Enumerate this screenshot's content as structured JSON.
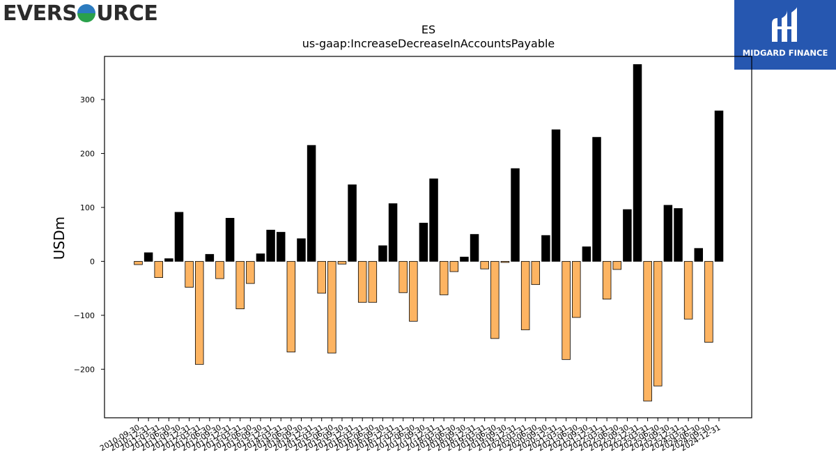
{
  "brand_left": {
    "pre": "EVERS",
    "post": "URCE"
  },
  "brand_right": {
    "name": "MIDGARD FINANCE"
  },
  "colors": {
    "positive": "#000000",
    "negative": "#fdb462",
    "bar_edge": "#000000"
  },
  "chart_data": {
    "type": "bar",
    "title": "ES",
    "subtitle": "us-gaap:IncreaseDecreaseInAccountsPayable",
    "ylabel": "USDm",
    "xlabel": "",
    "ylim": [
      -290,
      380
    ],
    "yticks": [
      -200,
      -100,
      0,
      100,
      200,
      300
    ],
    "ytick_labels": [
      "−200",
      "−100",
      "0",
      "100",
      "200",
      "300"
    ],
    "categories": [
      "2010-09-30",
      "2010-12-31",
      "2011-03-31",
      "2011-06-30",
      "2011-09-30",
      "2011-12-31",
      "2012-03-31",
      "2012-06-30",
      "2012-09-30",
      "2012-12-31",
      "2013-03-31",
      "2013-06-30",
      "2013-09-30",
      "2013-12-31",
      "2014-03-31",
      "2014-06-30",
      "2014-09-30",
      "2014-12-31",
      "2015-03-31",
      "2015-06-30",
      "2015-09-30",
      "2015-12-31",
      "2016-03-31",
      "2016-06-30",
      "2016-09-30",
      "2016-12-31",
      "2017-03-31",
      "2017-06-30",
      "2017-09-30",
      "2017-12-31",
      "2018-03-31",
      "2018-06-30",
      "2018-09-30",
      "2018-12-31",
      "2019-03-31",
      "2019-06-30",
      "2019-09-30",
      "2019-12-31",
      "2020-03-31",
      "2020-06-30",
      "2020-09-30",
      "2020-12-31",
      "2021-03-31",
      "2021-06-30",
      "2021-09-30",
      "2021-12-31",
      "2022-03-31",
      "2022-06-30",
      "2022-09-30",
      "2022-12-31",
      "2023-03-31",
      "2023-06-30",
      "2023-09-30",
      "2023-12-31",
      "2024-03-31",
      "2024-06-30",
      "2024-09-30",
      "2024-12-31"
    ],
    "values": [
      -6,
      16,
      -30,
      5,
      91,
      -48,
      -191,
      13,
      -32,
      80,
      -88,
      -41,
      14,
      58,
      54,
      -168,
      42,
      215,
      -59,
      -170,
      -5,
      142,
      -76,
      -76,
      29,
      107,
      -58,
      -111,
      71,
      153,
      -62,
      -19,
      8,
      50,
      -14,
      -143,
      -2,
      172,
      -127,
      -43,
      48,
      244,
      -182,
      -104,
      27,
      230,
      -70,
      -15,
      96,
      365,
      -259,
      -231,
      104,
      98,
      -107,
      24,
      -150,
      279
    ],
    "legend": "none",
    "grid": false
  }
}
